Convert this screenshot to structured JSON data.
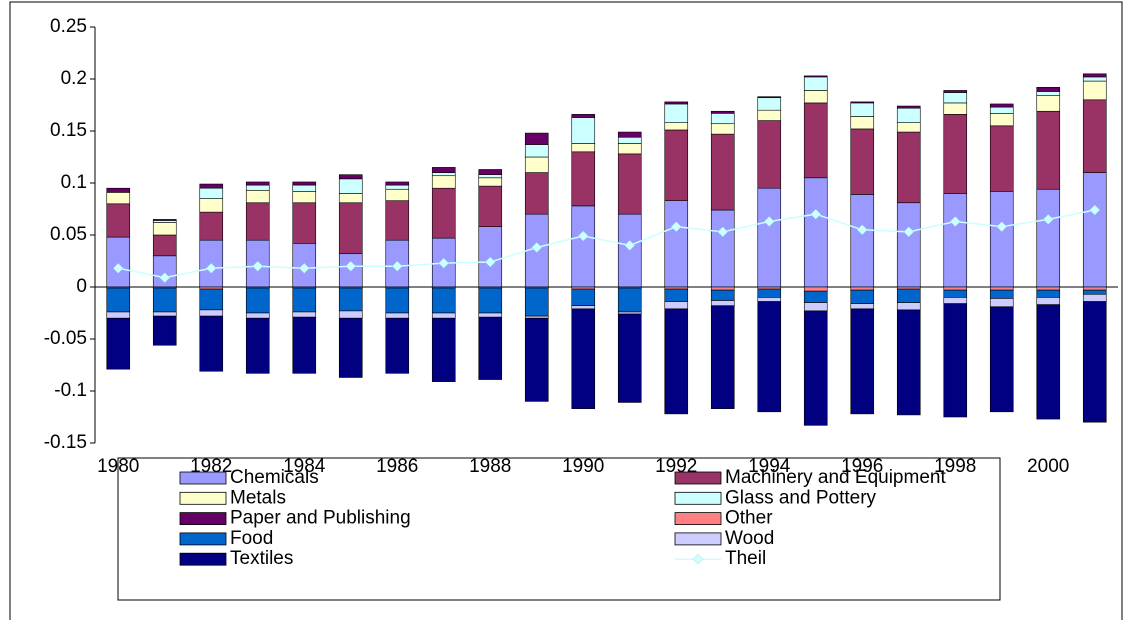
{
  "chart_data": {
    "type": "bar",
    "stacked": true,
    "categories": [
      "1980",
      null,
      "1982",
      null,
      "1984",
      null,
      "1986",
      null,
      "1988",
      null,
      "1990",
      null,
      "1992",
      null,
      "1994",
      null,
      "1996",
      null,
      "1998",
      null,
      "2000",
      null
    ],
    "ylim": [
      -0.15,
      0.25
    ],
    "yticks": [
      -0.15,
      -0.1,
      -0.05,
      0,
      0.05,
      0.1,
      0.15,
      0.2,
      0.25
    ],
    "series": [
      {
        "name": "Chemicals",
        "color": "#9999ff",
        "values": [
          0.048,
          0.03,
          0.045,
          0.045,
          0.042,
          0.032,
          0.045,
          0.047,
          0.058,
          0.07,
          0.078,
          0.07,
          0.083,
          0.074,
          0.095,
          0.105,
          0.089,
          0.081,
          0.09,
          0.092,
          0.094,
          0.11
        ]
      },
      {
        "name": "Machinery and Equipment",
        "color": "#993366",
        "values": [
          0.032,
          0.02,
          0.027,
          0.036,
          0.039,
          0.049,
          0.038,
          0.048,
          0.039,
          0.04,
          0.052,
          0.058,
          0.068,
          0.073,
          0.065,
          0.072,
          0.063,
          0.068,
          0.076,
          0.063,
          0.075,
          0.07
        ]
      },
      {
        "name": "Metals",
        "color": "#ffffcc",
        "values": [
          0.011,
          0.012,
          0.013,
          0.012,
          0.011,
          0.009,
          0.011,
          0.012,
          0.008,
          0.015,
          0.008,
          0.01,
          0.007,
          0.01,
          0.01,
          0.012,
          0.012,
          0.009,
          0.011,
          0.012,
          0.015,
          0.018
        ]
      },
      {
        "name": "Glass and Pottery",
        "color": "#ccffff",
        "values": [
          0.0,
          0.002,
          0.01,
          0.005,
          0.006,
          0.014,
          0.004,
          0.003,
          0.003,
          0.012,
          0.025,
          0.006,
          0.018,
          0.01,
          0.012,
          0.013,
          0.013,
          0.014,
          0.01,
          0.006,
          0.004,
          0.004
        ]
      },
      {
        "name": "Paper and Publishing",
        "color": "#660066",
        "values": [
          0.004,
          0.001,
          0.004,
          0.003,
          0.003,
          0.004,
          0.003,
          0.005,
          0.005,
          0.011,
          0.003,
          0.005,
          0.002,
          0.002,
          0.001,
          0.001,
          0.001,
          0.002,
          0.002,
          0.003,
          0.004,
          0.003
        ]
      },
      {
        "name": "Other",
        "color": "#ff8080",
        "values": [
          -0.001,
          -0.001,
          -0.002,
          -0.001,
          -0.001,
          -0.001,
          -0.001,
          -0.001,
          -0.001,
          -0.001,
          -0.002,
          -0.001,
          -0.002,
          -0.003,
          -0.002,
          -0.004,
          -0.003,
          -0.002,
          -0.003,
          -0.003,
          -0.003,
          -0.003
        ]
      },
      {
        "name": "Food",
        "color": "#0066cc",
        "values": [
          -0.023,
          -0.023,
          -0.02,
          -0.024,
          -0.023,
          -0.022,
          -0.024,
          -0.024,
          -0.024,
          -0.027,
          -0.016,
          -0.023,
          -0.012,
          -0.01,
          -0.008,
          -0.011,
          -0.013,
          -0.013,
          -0.007,
          -0.008,
          -0.007,
          -0.004
        ]
      },
      {
        "name": "Wood",
        "color": "#ccccff",
        "values": [
          -0.006,
          -0.004,
          -0.006,
          -0.005,
          -0.005,
          -0.007,
          -0.005,
          -0.005,
          -0.004,
          -0.002,
          -0.003,
          -0.002,
          -0.007,
          -0.005,
          -0.004,
          -0.008,
          -0.005,
          -0.007,
          -0.006,
          -0.008,
          -0.007,
          -0.007
        ]
      },
      {
        "name": "Textiles",
        "color": "#000080",
        "values": [
          -0.049,
          -0.028,
          -0.053,
          -0.053,
          -0.054,
          -0.057,
          -0.053,
          -0.061,
          -0.06,
          -0.08,
          -0.096,
          -0.085,
          -0.101,
          -0.099,
          -0.106,
          -0.11,
          -0.101,
          -0.101,
          -0.109,
          -0.101,
          -0.11,
          -0.116
        ]
      },
      {
        "name": "Theil",
        "type": "line",
        "color": "#ccffff",
        "values": [
          0.018,
          0.009,
          0.018,
          0.02,
          0.018,
          0.02,
          0.02,
          0.023,
          0.024,
          0.038,
          0.049,
          0.04,
          0.058,
          0.053,
          0.063,
          0.07,
          0.055,
          0.053,
          0.063,
          0.058,
          0.065,
          0.074
        ]
      }
    ]
  }
}
